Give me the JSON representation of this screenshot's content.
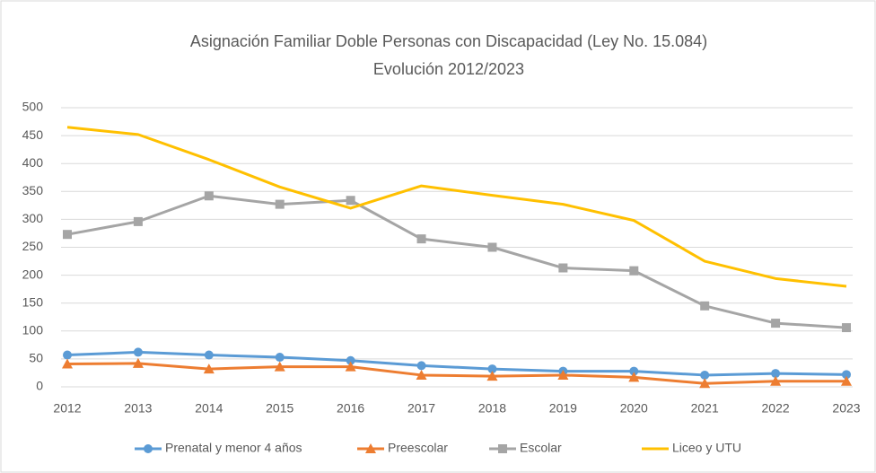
{
  "chart_data": {
    "type": "line",
    "title": "Asignación Familiar Doble Personas con Discapacidad (Ley  No. 15.084)",
    "subtitle": "Evolución 2012/2023",
    "categories": [
      "2012",
      "2013",
      "2014",
      "2015",
      "2016",
      "2017",
      "2018",
      "2019",
      "2020",
      "2021",
      "2022",
      "2023"
    ],
    "series": [
      {
        "name": "Prenatal y menor 4 años",
        "color": "#5b9bd5",
        "marker": "circle",
        "values": [
          57,
          62,
          57,
          53,
          47,
          38,
          32,
          28,
          28,
          21,
          24,
          22
        ]
      },
      {
        "name": "Preescolar",
        "color": "#ed7d31",
        "marker": "triangle",
        "values": [
          41,
          42,
          32,
          36,
          36,
          21,
          19,
          21,
          17,
          6,
          10,
          10
        ]
      },
      {
        "name": "Escolar",
        "color": "#a5a5a5",
        "marker": "square",
        "values": [
          273,
          296,
          342,
          327,
          334,
          265,
          250,
          213,
          208,
          145,
          114,
          106
        ]
      },
      {
        "name": "Liceo y UTU",
        "color": "#ffc000",
        "marker": "none",
        "values": [
          465,
          452,
          407,
          358,
          320,
          360,
          343,
          327,
          298,
          225,
          194,
          180
        ]
      }
    ],
    "ylim": [
      0,
      500
    ],
    "yticks": [
      0,
      50,
      100,
      150,
      200,
      250,
      300,
      350,
      400,
      450,
      500
    ],
    "grid": true,
    "legend": "bottom"
  }
}
